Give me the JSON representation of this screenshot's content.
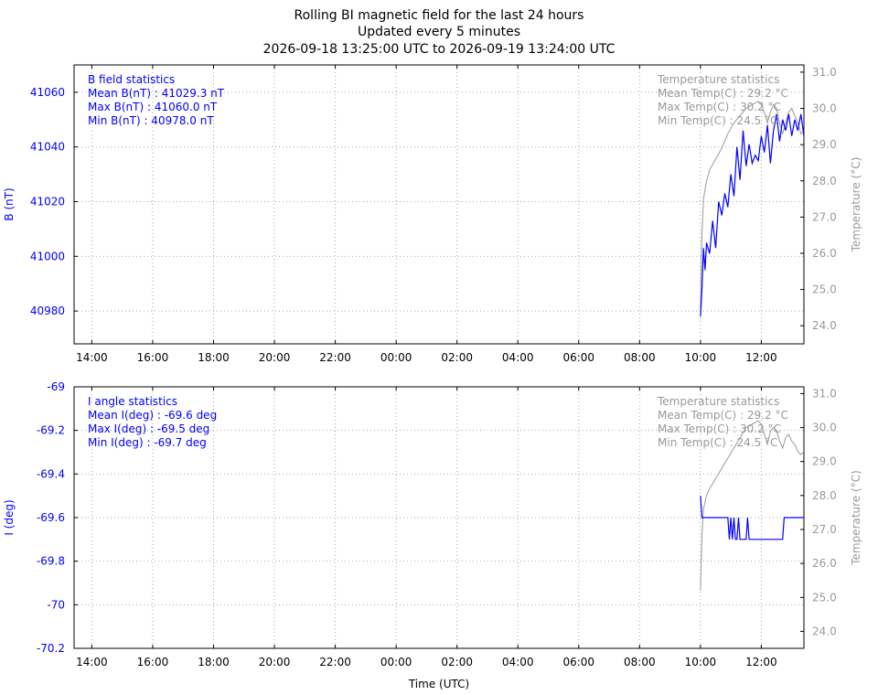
{
  "header": {
    "title": "Rolling BI magnetic field for the last 24 hours",
    "subtitle": "Updated every 5 minutes",
    "range": "2026-09-18 13:25:00 UTC to 2026-09-19 13:24:00 UTC"
  },
  "colors": {
    "field": "#0000ff",
    "temp": "#999999",
    "grid": "#aaaaaa",
    "axis": "#000000"
  },
  "x_ticks": [
    "14:00",
    "16:00",
    "18:00",
    "20:00",
    "22:00",
    "00:00",
    "02:00",
    "04:00",
    "06:00",
    "08:00",
    "10:00",
    "12:00"
  ],
  "xlabel": "Time (UTC)",
  "chart_data": [
    {
      "type": "line",
      "ylabel": "B (nT)",
      "y2label": "Temperature (°C)",
      "ylim": [
        40968,
        41070
      ],
      "y2lim": [
        23.5,
        31.2
      ],
      "y_ticks": [
        "41060",
        "41040",
        "41020",
        "41000",
        "40980"
      ],
      "y_tick_values": [
        41060,
        41040,
        41020,
        41000,
        40980
      ],
      "y2_ticks": [
        "31.0",
        "30.0",
        "29.0",
        "28.0",
        "27.0",
        "26.0",
        "25.0",
        "24.0"
      ],
      "y2_tick_values": [
        31,
        30,
        29,
        28,
        27,
        26,
        25,
        24
      ],
      "x_range_hours": [
        13.4167,
        37.4
      ],
      "grid": true,
      "stats_left": [
        "B field statistics",
        "Mean B(nT) : 41029.3 nT",
        "Max B(nT) : 41060.0 nT",
        "Min B(nT) : 40978.0 nT"
      ],
      "stats_right": [
        "Temperature statistics",
        "Mean Temp(C) : 29.2 °C",
        "Max Temp(C) : 30.2 °C",
        "Min Temp(C) : 24.5 °C"
      ],
      "series": [
        {
          "x": [
            34.0,
            34.05,
            34.1,
            34.15,
            34.2,
            34.3,
            34.4,
            34.5,
            34.6,
            34.7,
            34.8,
            34.9,
            35.0,
            35.1,
            35.2,
            35.3,
            35.4,
            35.5,
            35.6,
            35.7,
            35.8,
            35.9,
            36.0,
            36.1,
            36.2,
            36.3,
            36.4,
            36.5,
            36.6,
            36.7,
            36.8,
            36.9,
            37.0,
            37.1,
            37.2,
            37.3,
            37.4
          ],
          "values": [
            40978,
            40988,
            41003,
            40995,
            41005,
            41001,
            41013,
            41003,
            41020,
            41015,
            41023,
            41018,
            41030,
            41022,
            41040,
            41028,
            41046,
            41033,
            41041,
            41034,
            41037,
            41035,
            41044,
            41038,
            41048,
            41034,
            41046,
            41052,
            41042,
            41050,
            41046,
            41052,
            41044,
            41050,
            41046,
            41052,
            41044
          ]
        },
        {
          "axis": "y2",
          "x": [
            34.0,
            34.05,
            34.1,
            34.2,
            34.3,
            34.5,
            34.7,
            34.9,
            35.1,
            35.3,
            35.5,
            35.7,
            35.9,
            36.0,
            36.1,
            36.2,
            36.3,
            36.4,
            36.5,
            36.6,
            36.7,
            36.8,
            36.9,
            37.0,
            37.1,
            37.2,
            37.3,
            37.4
          ],
          "values": [
            24.5,
            26.5,
            27.5,
            28.0,
            28.3,
            28.6,
            28.9,
            29.3,
            29.6,
            29.8,
            30.0,
            30.1,
            30.2,
            30.1,
            29.9,
            29.6,
            29.9,
            30.1,
            30.0,
            29.6,
            29.3,
            29.6,
            29.9,
            30.0,
            29.8,
            29.6,
            29.3,
            29.4
          ]
        }
      ]
    },
    {
      "type": "line",
      "ylabel": "I (deg)",
      "y2label": "Temperature (°C)",
      "ylim": [
        -70.2,
        -69.0
      ],
      "y2lim": [
        23.5,
        31.2
      ],
      "y_ticks": [
        "-69",
        "-69.2",
        "-69.4",
        "-69.6",
        "-69.8",
        "-70",
        "-70.2"
      ],
      "y_tick_values": [
        -69.0,
        -69.2,
        -69.4,
        -69.6,
        -69.8,
        -70.0,
        -70.2
      ],
      "y2_ticks": [
        "31.0",
        "30.0",
        "29.0",
        "28.0",
        "27.0",
        "26.0",
        "25.0",
        "24.0"
      ],
      "y2_tick_values": [
        31,
        30,
        29,
        28,
        27,
        26,
        25,
        24
      ],
      "x_range_hours": [
        13.4167,
        37.4
      ],
      "grid": true,
      "stats_left": [
        "I angle statistics",
        "Mean I(deg) : -69.6 deg",
        "Max I(deg) : -69.5 deg",
        "Min I(deg) : -69.7 deg"
      ],
      "stats_right": [
        "Temperature statistics",
        "Mean Temp(C) : 29.2 °C",
        "Max Temp(C) : 30.2 °C",
        "Min Temp(C) : 24.5 °C"
      ],
      "series": [
        {
          "x": [
            34.0,
            34.05,
            34.1,
            34.9,
            34.95,
            35.0,
            35.05,
            35.1,
            35.15,
            35.2,
            35.25,
            35.3,
            35.35,
            35.5,
            35.55,
            35.6,
            35.65,
            36.7,
            36.75,
            37.4
          ],
          "values": [
            -69.5,
            -69.6,
            -69.6,
            -69.6,
            -69.7,
            -69.6,
            -69.7,
            -69.6,
            -69.7,
            -69.7,
            -69.6,
            -69.7,
            -69.7,
            -69.7,
            -69.6,
            -69.7,
            -69.7,
            -69.7,
            -69.6,
            -69.6
          ]
        },
        {
          "axis": "y2",
          "x": [
            34.0,
            34.05,
            34.1,
            34.2,
            34.3,
            34.5,
            34.7,
            34.9,
            35.1,
            35.3,
            35.5,
            35.7,
            35.9,
            36.0,
            36.1,
            36.2,
            36.3,
            36.4,
            36.5,
            36.6,
            36.7,
            36.8,
            36.9,
            37.0,
            37.1,
            37.2,
            37.3,
            37.4
          ],
          "values": [
            25.2,
            26.8,
            27.6,
            28.0,
            28.2,
            28.5,
            28.8,
            29.1,
            29.4,
            29.7,
            30.0,
            30.1,
            30.2,
            30.1,
            29.8,
            29.5,
            29.9,
            30.0,
            29.9,
            29.6,
            29.4,
            29.7,
            29.8,
            29.6,
            29.5,
            29.3,
            29.2,
            29.3
          ]
        }
      ]
    }
  ]
}
